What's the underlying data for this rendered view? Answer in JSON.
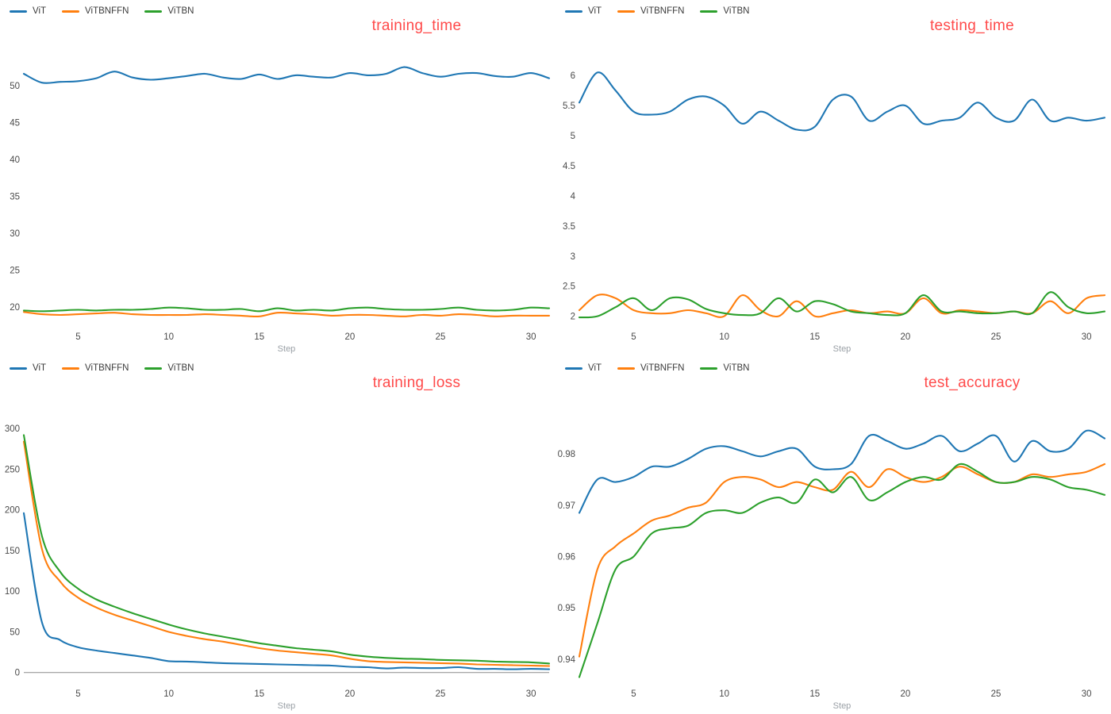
{
  "theme": {
    "title_color": "#ff4a4a",
    "tick_color": "#4a4a4a",
    "axis_label_color": "#9aa0a6",
    "zero_line_color": "#8c8c8c",
    "background": "#ffffff"
  },
  "chart_data": [
    {
      "type": "line",
      "title": "training_time",
      "xlabel": "Step",
      "legend_position": "top-left",
      "grid": false,
      "xlim": [
        2,
        31
      ],
      "ylim": [
        17.5,
        53
      ],
      "xticks": [
        5,
        10,
        15,
        20,
        25,
        30
      ],
      "yticks": [
        20,
        25,
        30,
        35,
        40,
        45,
        50
      ],
      "ytick_labels": [
        "20",
        "25",
        "30",
        "35",
        "40",
        "45",
        "50"
      ],
      "x": [
        2,
        3,
        4,
        5,
        6,
        7,
        8,
        9,
        10,
        11,
        12,
        13,
        14,
        15,
        16,
        17,
        18,
        19,
        20,
        21,
        22,
        23,
        24,
        25,
        26,
        27,
        28,
        29,
        30,
        31
      ],
      "series": [
        {
          "name": "ViT",
          "color": "#1f77b4",
          "values": [
            51.6,
            50.4,
            50.5,
            50.6,
            51.0,
            51.9,
            51.1,
            50.8,
            51.0,
            51.3,
            51.6,
            51.1,
            50.9,
            51.5,
            50.9,
            51.4,
            51.2,
            51.1,
            51.7,
            51.4,
            51.6,
            52.5,
            51.7,
            51.2,
            51.6,
            51.7,
            51.3,
            51.2,
            51.7,
            51.0
          ]
        },
        {
          "name": "ViTBNFFN",
          "color": "#ff7f0e",
          "values": [
            19.3,
            19.0,
            18.9,
            19.0,
            19.1,
            19.2,
            19.0,
            18.9,
            18.9,
            18.9,
            19.0,
            18.9,
            18.8,
            18.7,
            19.2,
            19.1,
            19.0,
            18.8,
            18.9,
            18.9,
            18.8,
            18.7,
            18.9,
            18.8,
            19.0,
            18.9,
            18.7,
            18.8,
            18.8,
            18.8
          ]
        },
        {
          "name": "ViTBN",
          "color": "#2ca02c",
          "values": [
            19.5,
            19.4,
            19.5,
            19.6,
            19.5,
            19.6,
            19.6,
            19.7,
            19.9,
            19.8,
            19.6,
            19.6,
            19.7,
            19.4,
            19.8,
            19.5,
            19.6,
            19.5,
            19.8,
            19.9,
            19.7,
            19.6,
            19.6,
            19.7,
            19.9,
            19.6,
            19.5,
            19.6,
            19.9,
            19.8
          ]
        }
      ]
    },
    {
      "type": "line",
      "title": "testing_time",
      "xlabel": "Step",
      "legend_position": "top-left",
      "grid": false,
      "xlim": [
        2,
        31
      ],
      "ylim": [
        1.85,
        6.2
      ],
      "xticks": [
        5,
        10,
        15,
        20,
        25,
        30
      ],
      "yticks": [
        2,
        2.5,
        3,
        3.5,
        4,
        4.5,
        5,
        5.5,
        6
      ],
      "ytick_labels": [
        "2",
        "2.5",
        "3",
        "3.5",
        "4",
        "4.5",
        "5",
        "5.5",
        "6"
      ],
      "x": [
        2,
        3,
        4,
        5,
        6,
        7,
        8,
        9,
        10,
        11,
        12,
        13,
        14,
        15,
        16,
        17,
        18,
        19,
        20,
        21,
        22,
        23,
        24,
        25,
        26,
        27,
        28,
        29,
        30,
        31
      ],
      "series": [
        {
          "name": "ViT",
          "color": "#1f77b4",
          "values": [
            5.55,
            6.05,
            5.75,
            5.4,
            5.35,
            5.4,
            5.6,
            5.65,
            5.5,
            5.2,
            5.4,
            5.25,
            5.1,
            5.15,
            5.6,
            5.65,
            5.25,
            5.4,
            5.5,
            5.2,
            5.25,
            5.3,
            5.55,
            5.3,
            5.25,
            5.6,
            5.25,
            5.3,
            5.25,
            5.3
          ]
        },
        {
          "name": "ViTBNFFN",
          "color": "#ff7f0e",
          "values": [
            2.1,
            2.35,
            2.3,
            2.1,
            2.05,
            2.05,
            2.1,
            2.05,
            2.0,
            2.35,
            2.1,
            2.0,
            2.25,
            2.0,
            2.05,
            2.1,
            2.05,
            2.08,
            2.05,
            2.3,
            2.05,
            2.1,
            2.08,
            2.05,
            2.08,
            2.05,
            2.25,
            2.05,
            2.3,
            2.35
          ]
        },
        {
          "name": "ViTBN",
          "color": "#2ca02c",
          "values": [
            1.98,
            2.0,
            2.15,
            2.3,
            2.1,
            2.3,
            2.28,
            2.12,
            2.05,
            2.02,
            2.05,
            2.3,
            2.08,
            2.25,
            2.2,
            2.08,
            2.05,
            2.02,
            2.05,
            2.35,
            2.08,
            2.08,
            2.05,
            2.05,
            2.08,
            2.05,
            2.4,
            2.15,
            2.05,
            2.08
          ]
        }
      ]
    },
    {
      "type": "line",
      "title": "training_loss",
      "xlabel": "Step",
      "legend_position": "top-left",
      "grid": false,
      "xlim": [
        2,
        31
      ],
      "ylim": [
        -12,
        310
      ],
      "xticks": [
        5,
        10,
        15,
        20,
        25,
        30
      ],
      "yticks": [
        0,
        50,
        100,
        150,
        200,
        250,
        300
      ],
      "ytick_labels": [
        "0",
        "50",
        "100",
        "150",
        "200",
        "250",
        "300"
      ],
      "x": [
        2,
        3,
        4,
        5,
        6,
        7,
        8,
        9,
        10,
        11,
        12,
        13,
        14,
        15,
        16,
        17,
        18,
        19,
        20,
        21,
        22,
        23,
        24,
        25,
        26,
        27,
        28,
        29,
        30,
        31
      ],
      "series": [
        {
          "name": "ViT",
          "color": "#1f77b4",
          "values": [
            196,
            62,
            40,
            31,
            27,
            24,
            21,
            18,
            14,
            13.5,
            12.5,
            11.5,
            11,
            10.5,
            10,
            9.5,
            9,
            8.5,
            7,
            6.5,
            5,
            6,
            5.5,
            5.5,
            6.5,
            4.5,
            4.5,
            4,
            4.5,
            4
          ]
        },
        {
          "name": "ViTBNFFN",
          "color": "#ff7f0e",
          "values": [
            284,
            152,
            112,
            92,
            80,
            71,
            64,
            57,
            50,
            45,
            41,
            38,
            34,
            30,
            27,
            25,
            23,
            21,
            17,
            14,
            13,
            12.5,
            12,
            11.5,
            11,
            10,
            9.5,
            9,
            8.5,
            8
          ]
        },
        {
          "name": "ViTBN",
          "color": "#2ca02c",
          "values": [
            292,
            168,
            124,
            103,
            90,
            81,
            73,
            66,
            59,
            53,
            48,
            44,
            40,
            36,
            33,
            30,
            28,
            26,
            22,
            19.5,
            18,
            17,
            16.5,
            15.5,
            15,
            14.5,
            13.5,
            13,
            12.5,
            11
          ]
        }
      ]
    },
    {
      "type": "line",
      "title": "test_accuracy",
      "xlabel": "Step",
      "legend_position": "top-left",
      "grid": false,
      "xlim": [
        2,
        31
      ],
      "ylim": [
        0.9355,
        0.9865
      ],
      "xticks": [
        5,
        10,
        15,
        20,
        25,
        30
      ],
      "yticks": [
        0.94,
        0.95,
        0.96,
        0.97,
        0.98
      ],
      "ytick_labels": [
        "0.94",
        "0.95",
        "0.96",
        "0.97",
        "0.98"
      ],
      "x": [
        2,
        3,
        4,
        5,
        6,
        7,
        8,
        9,
        10,
        11,
        12,
        13,
        14,
        15,
        16,
        17,
        18,
        19,
        20,
        21,
        22,
        23,
        24,
        25,
        26,
        27,
        28,
        29,
        30,
        31
      ],
      "series": [
        {
          "name": "ViT",
          "color": "#1f77b4",
          "values": [
            0.9685,
            0.975,
            0.9745,
            0.9755,
            0.9775,
            0.9775,
            0.979,
            0.981,
            0.9815,
            0.9805,
            0.9795,
            0.9805,
            0.981,
            0.9775,
            0.977,
            0.978,
            0.9835,
            0.9825,
            0.981,
            0.982,
            0.9835,
            0.9805,
            0.982,
            0.9835,
            0.9785,
            0.9825,
            0.9805,
            0.981,
            0.9845,
            0.983
          ]
        },
        {
          "name": "ViTBNFFN",
          "color": "#ff7f0e",
          "values": [
            0.9405,
            0.9575,
            0.962,
            0.9645,
            0.967,
            0.968,
            0.9695,
            0.9705,
            0.9745,
            0.9755,
            0.975,
            0.9735,
            0.9745,
            0.9735,
            0.973,
            0.9765,
            0.9735,
            0.977,
            0.9755,
            0.9745,
            0.9755,
            0.9775,
            0.976,
            0.9745,
            0.9745,
            0.976,
            0.9755,
            0.976,
            0.9765,
            0.978
          ]
        },
        {
          "name": "ViTBN",
          "color": "#2ca02c",
          "values": [
            0.9365,
            0.947,
            0.9575,
            0.96,
            0.9645,
            0.9655,
            0.966,
            0.9685,
            0.969,
            0.9685,
            0.9705,
            0.9715,
            0.9705,
            0.975,
            0.9725,
            0.9755,
            0.971,
            0.9725,
            0.9745,
            0.9755,
            0.975,
            0.978,
            0.9765,
            0.9745,
            0.9745,
            0.9755,
            0.975,
            0.9735,
            0.973,
            0.972
          ]
        }
      ]
    }
  ]
}
